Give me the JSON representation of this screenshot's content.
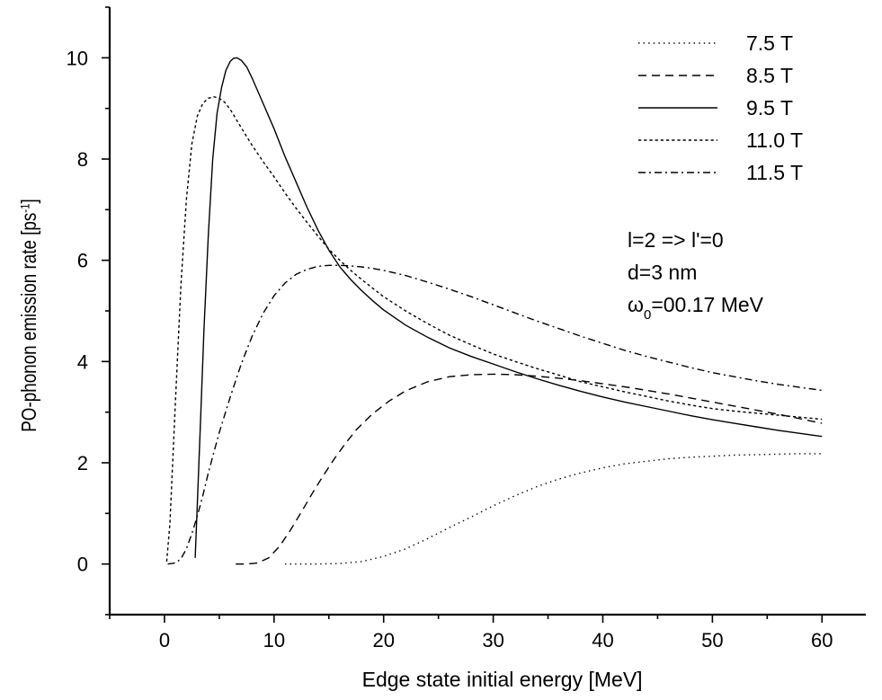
{
  "chart_data": {
    "type": "line",
    "xlabel": "Edge state initial energy [MeV]",
    "ylabel": "PO-phonon emission rate [ps",
    "ylabel_sup": "-1",
    "ylabel_end": "]",
    "xlim": [
      -5,
      64
    ],
    "ylim": [
      -1,
      11
    ],
    "xticks": [
      0,
      10,
      20,
      30,
      40,
      50,
      60
    ],
    "yticks": [
      0,
      2,
      4,
      6,
      8,
      10
    ],
    "grid": false,
    "legend_position": "top-right",
    "series": [
      {
        "name": "7.5 T",
        "dash": "dotted",
        "x": [
          11,
          12,
          14,
          16,
          18,
          20,
          22,
          24,
          26,
          28,
          30,
          32,
          34,
          36,
          38,
          40,
          42,
          44,
          46,
          48,
          50,
          52,
          54,
          56,
          58,
          60
        ],
        "y": [
          0,
          0,
          0,
          0.01,
          0.05,
          0.15,
          0.3,
          0.5,
          0.72,
          0.93,
          1.15,
          1.35,
          1.53,
          1.68,
          1.8,
          1.9,
          1.98,
          2.03,
          2.08,
          2.11,
          2.13,
          2.15,
          2.16,
          2.17,
          2.18,
          2.18
        ]
      },
      {
        "name": "8.5 T",
        "dash": "dashed",
        "x": [
          6.5,
          7.5,
          8.5,
          9.5,
          10.5,
          11.5,
          12.5,
          13.5,
          14.5,
          15.5,
          16.5,
          17.5,
          19,
          20.5,
          22,
          24,
          26,
          28,
          30,
          32,
          34,
          36,
          38,
          40,
          42,
          44,
          46,
          48,
          50,
          52,
          54,
          56,
          58,
          60
        ],
        "y": [
          0,
          0,
          0.02,
          0.12,
          0.35,
          0.67,
          1.03,
          1.4,
          1.75,
          2.08,
          2.38,
          2.65,
          2.97,
          3.22,
          3.42,
          3.6,
          3.7,
          3.74,
          3.75,
          3.74,
          3.71,
          3.67,
          3.62,
          3.56,
          3.5,
          3.43,
          3.36,
          3.28,
          3.2,
          3.12,
          3.04,
          2.96,
          2.87,
          2.78
        ]
      },
      {
        "name": "9.5 T",
        "dash": "solid",
        "x": [
          2.8,
          3,
          3.3,
          3.6,
          4,
          4.4,
          4.8,
          5.2,
          5.6,
          6,
          6.3,
          6.6,
          7,
          7.5,
          8,
          9,
          10,
          11,
          12,
          13,
          14,
          15,
          16,
          17,
          18,
          19,
          20,
          22,
          24,
          26,
          28,
          30,
          32,
          34,
          36,
          38,
          40,
          42,
          44,
          46,
          48,
          50,
          52,
          54,
          56,
          58,
          60
        ],
        "y": [
          0.12,
          1.2,
          2.9,
          4.6,
          6.5,
          8,
          8.9,
          9.4,
          9.75,
          9.93,
          9.99,
          10,
          9.95,
          9.82,
          9.6,
          9.1,
          8.6,
          8.05,
          7.55,
          7.05,
          6.6,
          6.2,
          5.87,
          5.62,
          5.4,
          5.2,
          5.02,
          4.72,
          4.48,
          4.27,
          4.1,
          3.95,
          3.8,
          3.66,
          3.53,
          3.41,
          3.3,
          3.2,
          3.11,
          3.02,
          2.93,
          2.85,
          2.78,
          2.71,
          2.64,
          2.58,
          2.52
        ]
      },
      {
        "name": "11.0 T",
        "dash": "short-dash",
        "x": [
          0.2,
          0.5,
          1,
          1.5,
          2,
          2.5,
          3,
          3.5,
          4,
          4.5,
          5,
          5.5,
          6,
          7,
          8,
          9,
          10,
          11,
          12,
          13,
          14,
          15,
          16,
          17,
          18,
          19,
          20,
          22,
          24,
          26,
          28,
          30,
          32,
          34,
          36,
          38,
          40,
          42,
          44,
          46,
          48,
          50,
          52,
          54,
          56,
          58,
          60
        ],
        "y": [
          0.05,
          0.8,
          3.2,
          5.5,
          7.2,
          8.3,
          8.85,
          9.1,
          9.2,
          9.23,
          9.2,
          9.12,
          8.98,
          8.62,
          8.27,
          7.95,
          7.65,
          7.33,
          7.03,
          6.75,
          6.48,
          6.22,
          6.0,
          5.8,
          5.62,
          5.45,
          5.28,
          5.0,
          4.75,
          4.52,
          4.33,
          4.15,
          4.0,
          3.86,
          3.73,
          3.6,
          3.5,
          3.4,
          3.31,
          3.22,
          3.14,
          3.07,
          3.02,
          2.98,
          2.94,
          2.9,
          2.86
        ]
      },
      {
        "name": "11.5 T",
        "dash": "dash-dot",
        "x": [
          0.3,
          1,
          1.5,
          2,
          2.5,
          3,
          3.5,
          4,
          5,
          6,
          7,
          8,
          9,
          10,
          11,
          12,
          13,
          14,
          15,
          16,
          17,
          18,
          19,
          20,
          22,
          24,
          26,
          28,
          30,
          32,
          34,
          36,
          38,
          40,
          42,
          44,
          46,
          48,
          50,
          52,
          54,
          56,
          58,
          60
        ],
        "y": [
          0,
          0.02,
          0.1,
          0.3,
          0.6,
          0.95,
          1.35,
          1.8,
          2.6,
          3.3,
          3.95,
          4.5,
          4.95,
          5.3,
          5.55,
          5.72,
          5.82,
          5.88,
          5.9,
          5.9,
          5.89,
          5.87,
          5.84,
          5.8,
          5.7,
          5.57,
          5.43,
          5.28,
          5.12,
          4.96,
          4.8,
          4.65,
          4.5,
          4.36,
          4.22,
          4.1,
          3.99,
          3.88,
          3.78,
          3.7,
          3.62,
          3.55,
          3.49,
          3.43
        ]
      }
    ],
    "annotations": [
      {
        "text": "l=2 => l'=0"
      },
      {
        "text": "d=3 nm"
      },
      {
        "text": "ω",
        "sub": "0",
        "rest": "=00.17 MeV"
      }
    ]
  }
}
